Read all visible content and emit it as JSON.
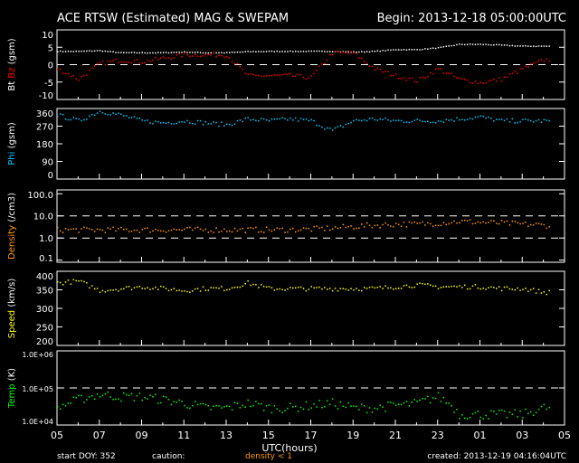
{
  "header": {
    "title": "ACE RTSW (Estimated) MAG & SWEPAM",
    "begin": "Begin: 2013-12-18 05:00:00UTC"
  },
  "footer": {
    "start_doy": "start DOY: 352",
    "caution": "caution:",
    "caution_note": "density < 1",
    "created": "created: 2013-12-19 04:16:04UTC",
    "caution_color": "#ff9900"
  },
  "chart_data": [
    {
      "type": "scatter",
      "title": "Bt Bz (gsm)",
      "ylabel_parts": [
        "Bt",
        "Bz",
        "(gsm)"
      ],
      "ylim": [
        -10,
        10
      ],
      "yticks": [
        "10",
        "5",
        "0",
        "-5",
        "-10"
      ],
      "ytick_values": [
        10,
        5,
        0,
        -5,
        -10
      ],
      "dashed": [
        0
      ],
      "scale": "linear",
      "series": [
        {
          "name": "Bt",
          "color": "#ffffff",
          "values": [
            4,
            4,
            4.2,
            3.6,
            3.6,
            3.6,
            3.8,
            3.6,
            3.6,
            3.9,
            4,
            4,
            4,
            4,
            3.8,
            4,
            4.5,
            4.5,
            5,
            6,
            6,
            5.8,
            5.5,
            5.5,
            5.3
          ]
        },
        {
          "name": "Bz",
          "color": "#ff0000",
          "values": [
            -1,
            -4,
            0.5,
            1.5,
            1,
            2,
            3,
            3,
            3,
            -3,
            -3,
            -3,
            -3.5,
            3.5,
            3.5,
            -1,
            -3,
            -4.5,
            -1,
            -4,
            -5,
            -4,
            -1,
            1.5,
            2
          ]
        }
      ]
    },
    {
      "type": "scatter",
      "title": "Phi (gsm)",
      "ylabel_parts": [
        "Phi",
        "(gsm)"
      ],
      "ylim": [
        0,
        360
      ],
      "yticks": [
        "360",
        "270",
        "180",
        "90",
        "0"
      ],
      "ytick_values": [
        360,
        270,
        180,
        90,
        0
      ],
      "dashed": [],
      "scale": "linear",
      "series": [
        {
          "name": "Phi",
          "color": "#00ccff",
          "values": [
            330,
            300,
            350,
            330,
            300,
            290,
            300,
            290,
            280,
            310,
            300,
            310,
            300,
            250,
            300,
            310,
            300,
            300,
            300,
            310,
            320,
            300,
            300,
            300,
            295
          ]
        }
      ]
    },
    {
      "type": "scatter",
      "title": "Density (/cm3)",
      "ylabel_parts": [
        "Density",
        "(/cm3)"
      ],
      "ylim": [
        0.08,
        150
      ],
      "yticks": [
        "100.0",
        "10.0",
        "1.0",
        "0.1"
      ],
      "ytick_values": [
        100,
        10,
        1,
        0.1
      ],
      "dashed": [
        10,
        1
      ],
      "scale": "log",
      "series": [
        {
          "name": "Density",
          "color": "#ff9900",
          "values": [
            2.5,
            2.5,
            2.5,
            2.5,
            2.5,
            2.5,
            2.5,
            2.5,
            2.5,
            2.5,
            2.5,
            2.5,
            2.7,
            3,
            3.5,
            4,
            4.5,
            4.5,
            5,
            6,
            5.5,
            5,
            4.5,
            4,
            3.5
          ]
        }
      ]
    },
    {
      "type": "scatter",
      "title": "Speed (km/s)",
      "ylabel_parts": [
        "Speed",
        "(km/s)"
      ],
      "ylim": [
        200,
        400
      ],
      "yticks": [
        "400",
        "350",
        "300",
        "250",
        "200"
      ],
      "ytick_values": [
        400,
        350,
        300,
        250,
        200
      ],
      "dashed": [],
      "scale": "linear",
      "series": [
        {
          "name": "Speed",
          "color": "#ffff00",
          "values": [
            370,
            375,
            350,
            355,
            360,
            355,
            350,
            355,
            355,
            370,
            355,
            355,
            355,
            355,
            355,
            355,
            360,
            365,
            360,
            360,
            360,
            355,
            355,
            345,
            345
          ]
        }
      ]
    },
    {
      "type": "scatter",
      "title": "Temp (K)",
      "ylabel_parts": [
        "Temp",
        "(K)"
      ],
      "ylim": [
        10000,
        1000000
      ],
      "yticks": [
        "1.0E+06",
        "1.0E+05",
        "1.0E+04"
      ],
      "ytick_values": [
        1000000,
        100000,
        10000
      ],
      "dashed": [
        100000
      ],
      "scale": "log",
      "series": [
        {
          "name": "Temp",
          "color": "#00ff00",
          "values": [
            30000,
            50000,
            70000,
            60000,
            60000,
            50000,
            40000,
            30000,
            30000,
            40000,
            30000,
            30000,
            35000,
            40000,
            30000,
            30000,
            35000,
            40000,
            60000,
            20000,
            20000,
            20000,
            20000,
            30000,
            30000
          ]
        }
      ]
    }
  ],
  "xaxis": {
    "label": "UTC(hours)",
    "ticks": [
      "05",
      "07",
      "09",
      "11",
      "13",
      "15",
      "17",
      "19",
      "21",
      "23",
      "01",
      "03",
      "05"
    ],
    "span_hours": 24,
    "data_end_hours": 23.3
  }
}
